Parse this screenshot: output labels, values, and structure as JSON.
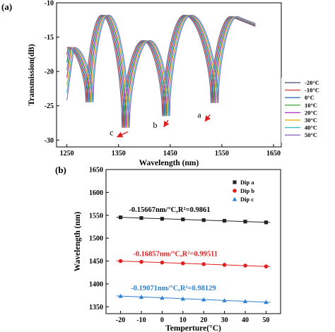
{
  "chart_data": [
    {
      "type": "line",
      "panel_label": "(a)",
      "xlabel": "Wavelength (nm)",
      "ylabel": "Transmission(dB)",
      "xlim": [
        1230,
        1665
      ],
      "ylim": [
        -31,
        -10
      ],
      "xticks": [
        "1250",
        "1350",
        "1450",
        "1550",
        "1650"
      ],
      "xtick_values": [
        1250,
        1350,
        1450,
        1550,
        1650
      ],
      "yticks": [
        "-10",
        "-15",
        "-20",
        "-25",
        "-30"
      ],
      "ytick_values": [
        -10,
        -15,
        -20,
        -25,
        -30
      ],
      "x_range_data": [
        1250,
        1615
      ],
      "spectrum_shape": {
        "peaks_at_0C": [
          [
            1258,
            -16.5
          ],
          [
            1325,
            -11.8
          ],
          [
            1405,
            -15.5
          ],
          [
            1485,
            -11.8
          ],
          [
            1575,
            -12.0
          ]
        ],
        "dips_at_0C": [
          [
            1295,
            -24.5
          ],
          [
            1365,
            -28.2
          ],
          [
            1443,
            -26.5
          ],
          [
            1537,
            -24.6
          ]
        ]
      },
      "legend_position": "right",
      "series": [
        {
          "name": "-20°C",
          "color": "#5a6a8f",
          "shift_nm": -8
        },
        {
          "name": "-10°C",
          "color": "#e0473f",
          "shift_nm": -6
        },
        {
          "name": "0°C",
          "color": "#3070c8",
          "shift_nm": -4
        },
        {
          "name": "10°C",
          "color": "#4cae4c",
          "shift_nm": -2
        },
        {
          "name": "20°C",
          "color": "#b03abf",
          "shift_nm": 0
        },
        {
          "name": "30°C",
          "color": "#e8b92a",
          "shift_nm": 2
        },
        {
          "name": "40°C",
          "color": "#3abcc8",
          "shift_nm": 4
        },
        {
          "name": "50°C",
          "color": "#8a6bbf",
          "shift_nm": 6
        }
      ],
      "annotations": [
        {
          "text": "a",
          "x": 1510,
          "y": -26.3,
          "arrow_from": [
            1527,
            -26.3
          ],
          "arrow_to": [
            1510,
            -27.3
          ]
        },
        {
          "text": "b",
          "x": 1425,
          "y": -27.8,
          "arrow_from": [
            1446,
            -27.1
          ],
          "arrow_to": [
            1430,
            -28.1
          ]
        },
        {
          "text": "c",
          "x": 1340,
          "y": -28.9,
          "arrow_from": [
            1368,
            -28.8
          ],
          "arrow_to": [
            1340,
            -29.6
          ]
        }
      ]
    },
    {
      "type": "scatter",
      "panel_label": "(b)",
      "xlabel": "Temperture(°C)",
      "ylabel": "Wavelength (nm)",
      "xlim": [
        -27,
        57
      ],
      "ylim": [
        1335,
        1650
      ],
      "xticks": [
        "-20",
        "-10",
        "0",
        "10",
        "20",
        "30",
        "40",
        "50"
      ],
      "xtick_values": [
        -20,
        -10,
        0,
        10,
        20,
        30,
        40,
        50
      ],
      "yticks": [
        "1350",
        "1400",
        "1450",
        "1500",
        "1550",
        "1600",
        "1650"
      ],
      "ytick_values": [
        1350,
        1400,
        1450,
        1500,
        1550,
        1600,
        1650
      ],
      "legend_position": "top-right",
      "x": [
        -20,
        -10,
        0,
        10,
        20,
        30,
        40,
        50
      ],
      "series": [
        {
          "name": "Dip a",
          "color": "#222222",
          "marker": "square",
          "values": [
            1545.5,
            1544.0,
            1542.3,
            1541.0,
            1539.4,
            1538.0,
            1536.2,
            1534.5
          ],
          "fit_label": "-0.15667nm/°C,R²=0.9861",
          "fit_label_color": "#000000",
          "fit_label_pos": [
            -16,
            1557
          ]
        },
        {
          "name": "Dip b",
          "color": "#e02020",
          "marker": "circle",
          "values": [
            1450.0,
            1448.2,
            1446.7,
            1445.0,
            1443.2,
            1441.6,
            1440.0,
            1438.2
          ],
          "fit_label": "-0.16857nm/°C,R²=0.99511",
          "fit_label_color": "#e02020",
          "fit_label_pos": [
            -14,
            1461
          ]
        },
        {
          "name": "Dip c",
          "color": "#2f7fd0",
          "marker": "triangle",
          "values": [
            1373.5,
            1371.5,
            1369.6,
            1367.5,
            1365.8,
            1363.9,
            1362.0,
            1360.2
          ],
          "fit_label": "-0.19071nm/°C,R²=0.98129",
          "fit_label_color": "#2f7fd0",
          "fit_label_pos": [
            -15,
            1386
          ]
        }
      ]
    }
  ]
}
